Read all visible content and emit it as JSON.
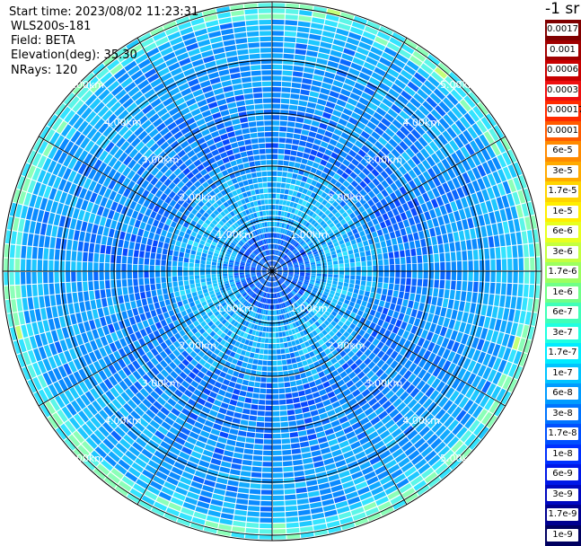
{
  "info": {
    "start_time": "Start time: 2023/08/02 11:23:31",
    "instrument": "WLS200s-181",
    "field": "Field: BETA",
    "elevation": "Elevation(deg): 35.30",
    "nrays": "NRays: 120"
  },
  "range_rings": [
    {
      "label": "1.00km"
    },
    {
      "label": "2.00km"
    },
    {
      "label": "3.00km"
    },
    {
      "label": "4.00km"
    },
    {
      "label": "5.00km"
    }
  ],
  "colorbar": {
    "unit": "-1 sr",
    "levels": [
      {
        "label": "0.0017",
        "color": "#800000"
      },
      {
        "label": "0.001",
        "color": "#a00000"
      },
      {
        "label": "0.0006",
        "color": "#c80000"
      },
      {
        "label": "0.0003",
        "color": "#ee1010"
      },
      {
        "label": "0.00017",
        "color": "#ff2a00"
      },
      {
        "label": "0.0001",
        "color": "#ff5a00"
      },
      {
        "label": "6e-5",
        "color": "#ff8a00"
      },
      {
        "label": "3e-5",
        "color": "#ffaa00"
      },
      {
        "label": "1.7e-5",
        "color": "#ffd400"
      },
      {
        "label": "1e-5",
        "color": "#ffee00"
      },
      {
        "label": "6e-6",
        "color": "#e8ff20"
      },
      {
        "label": "3e-6",
        "color": "#c4ff40"
      },
      {
        "label": "1.7e-6",
        "color": "#9cff60"
      },
      {
        "label": "1e-6",
        "color": "#70ff88"
      },
      {
        "label": "6e-7",
        "color": "#40ffb8"
      },
      {
        "label": "3e-7",
        "color": "#20ffe0"
      },
      {
        "label": "1.7e-7",
        "color": "#00ecff"
      },
      {
        "label": "1e-7",
        "color": "#00c4ff"
      },
      {
        "label": "6e-8",
        "color": "#009cff"
      },
      {
        "label": "3e-8",
        "color": "#0074ff"
      },
      {
        "label": "1.7e-8",
        "color": "#0050ff"
      },
      {
        "label": "1e-8",
        "color": "#0030ff"
      },
      {
        "label": "6e-9",
        "color": "#0018e8"
      },
      {
        "label": "3e-9",
        "color": "#0008c0"
      },
      {
        "label": "1.7e-9",
        "color": "#000090"
      },
      {
        "label": "1e-9",
        "color": "#000060"
      }
    ]
  }
}
